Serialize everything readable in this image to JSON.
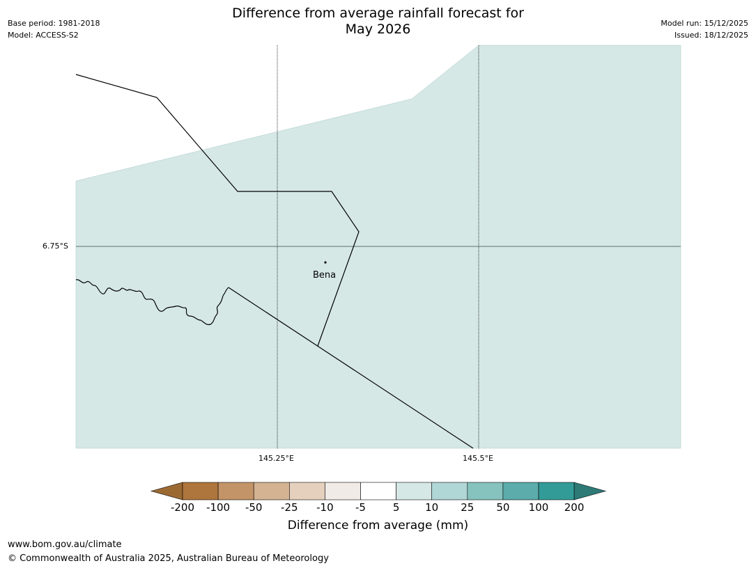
{
  "header": {
    "base_period": "Base period: 1981-2018",
    "model": "Model: ACCESS-S2",
    "title_line1": "Difference from average rainfall forecast for",
    "title_line2": "May 2026",
    "model_run": "Model run: 15/12/2025",
    "issued": "Issued: 18/12/2025"
  },
  "map": {
    "background_color": "#d5e8e6",
    "lat_label": "6.75°S",
    "lon_labels": [
      "145.25°E",
      "145.5°E"
    ],
    "place": {
      "name": "Bena"
    },
    "forecast_category": "5 to 10"
  },
  "colorbar": {
    "ticks": [
      "-200",
      "-100",
      "-50",
      "-25",
      "-10",
      "-5",
      "5",
      "10",
      "25",
      "50",
      "100",
      "200"
    ],
    "colors": [
      "#9b6a33",
      "#ae763c",
      "#c29467",
      "#d4b392",
      "#e4d0bd",
      "#f0ebe7",
      "#ffffff",
      "#d5e8e6",
      "#b0d6d5",
      "#86c2be",
      "#5bacab",
      "#339b97",
      "#2d7a77"
    ],
    "label": "Difference from average (mm)"
  },
  "footer": {
    "url": "www.bom.gov.au/climate",
    "copyright": "© Commonwealth of Australia 2025, Australian Bureau of Meteorology"
  }
}
